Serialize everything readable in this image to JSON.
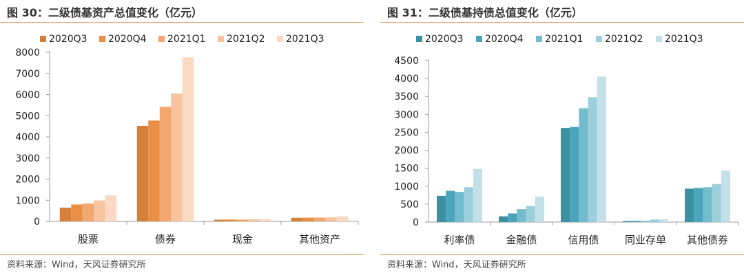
{
  "charts": [
    {
      "title": "图 30：二级债基资产总值变化（亿元）",
      "source": "资料来源：Wind，天风证券研究所"
    },
    {
      "title": "图 31：二级债基持债总值变化（亿元）",
      "source": "资料来源：Wind，天风证券研究所"
    }
  ],
  "chart_data": [
    {
      "type": "bar",
      "title": "图 30：二级债基资产总值变化（亿元）",
      "categories": [
        "股票",
        "债券",
        "现金",
        "其他资产"
      ],
      "series": [
        {
          "name": "2020Q3",
          "color": "#d5803a",
          "values": [
            650,
            4520,
            80,
            170
          ]
        },
        {
          "name": "2020Q4",
          "color": "#e88f45",
          "values": [
            800,
            4770,
            90,
            175
          ]
        },
        {
          "name": "2021Q1",
          "color": "#f2a870",
          "values": [
            850,
            5420,
            85,
            180
          ]
        },
        {
          "name": "2021Q2",
          "color": "#f8c4a0",
          "values": [
            990,
            6050,
            95,
            190
          ]
        },
        {
          "name": "2021Q3",
          "color": "#fcd9c3",
          "values": [
            1230,
            7760,
            100,
            240
          ]
        }
      ],
      "ylim": [
        0,
        8000
      ],
      "yticks": [
        0,
        1000,
        2000,
        3000,
        4000,
        5000,
        6000,
        7000,
        8000
      ],
      "grid": false,
      "legend": "top"
    },
    {
      "type": "bar",
      "title": "图 31：二级债基持债总值变化（亿元）",
      "categories": [
        "利率债",
        "金融债",
        "信用债",
        "同业存单",
        "其他债券"
      ],
      "series": [
        {
          "name": "2020Q3",
          "color": "#3d8fa3",
          "values": [
            730,
            160,
            2620,
            30,
            930
          ]
        },
        {
          "name": "2020Q4",
          "color": "#4ba5bb",
          "values": [
            870,
            240,
            2650,
            35,
            950
          ]
        },
        {
          "name": "2021Q1",
          "color": "#73bccd",
          "values": [
            840,
            360,
            3170,
            30,
            970
          ]
        },
        {
          "name": "2021Q2",
          "color": "#9dcfdb",
          "values": [
            970,
            450,
            3480,
            70,
            1060
          ]
        },
        {
          "name": "2021Q3",
          "color": "#c3e0e8",
          "values": [
            1480,
            710,
            4050,
            75,
            1430
          ]
        }
      ],
      "ylim": [
        0,
        4500
      ],
      "yticks": [
        0,
        500,
        1000,
        1500,
        2000,
        2500,
        3000,
        3500,
        4000,
        4500
      ],
      "grid": false,
      "legend": "top"
    }
  ]
}
